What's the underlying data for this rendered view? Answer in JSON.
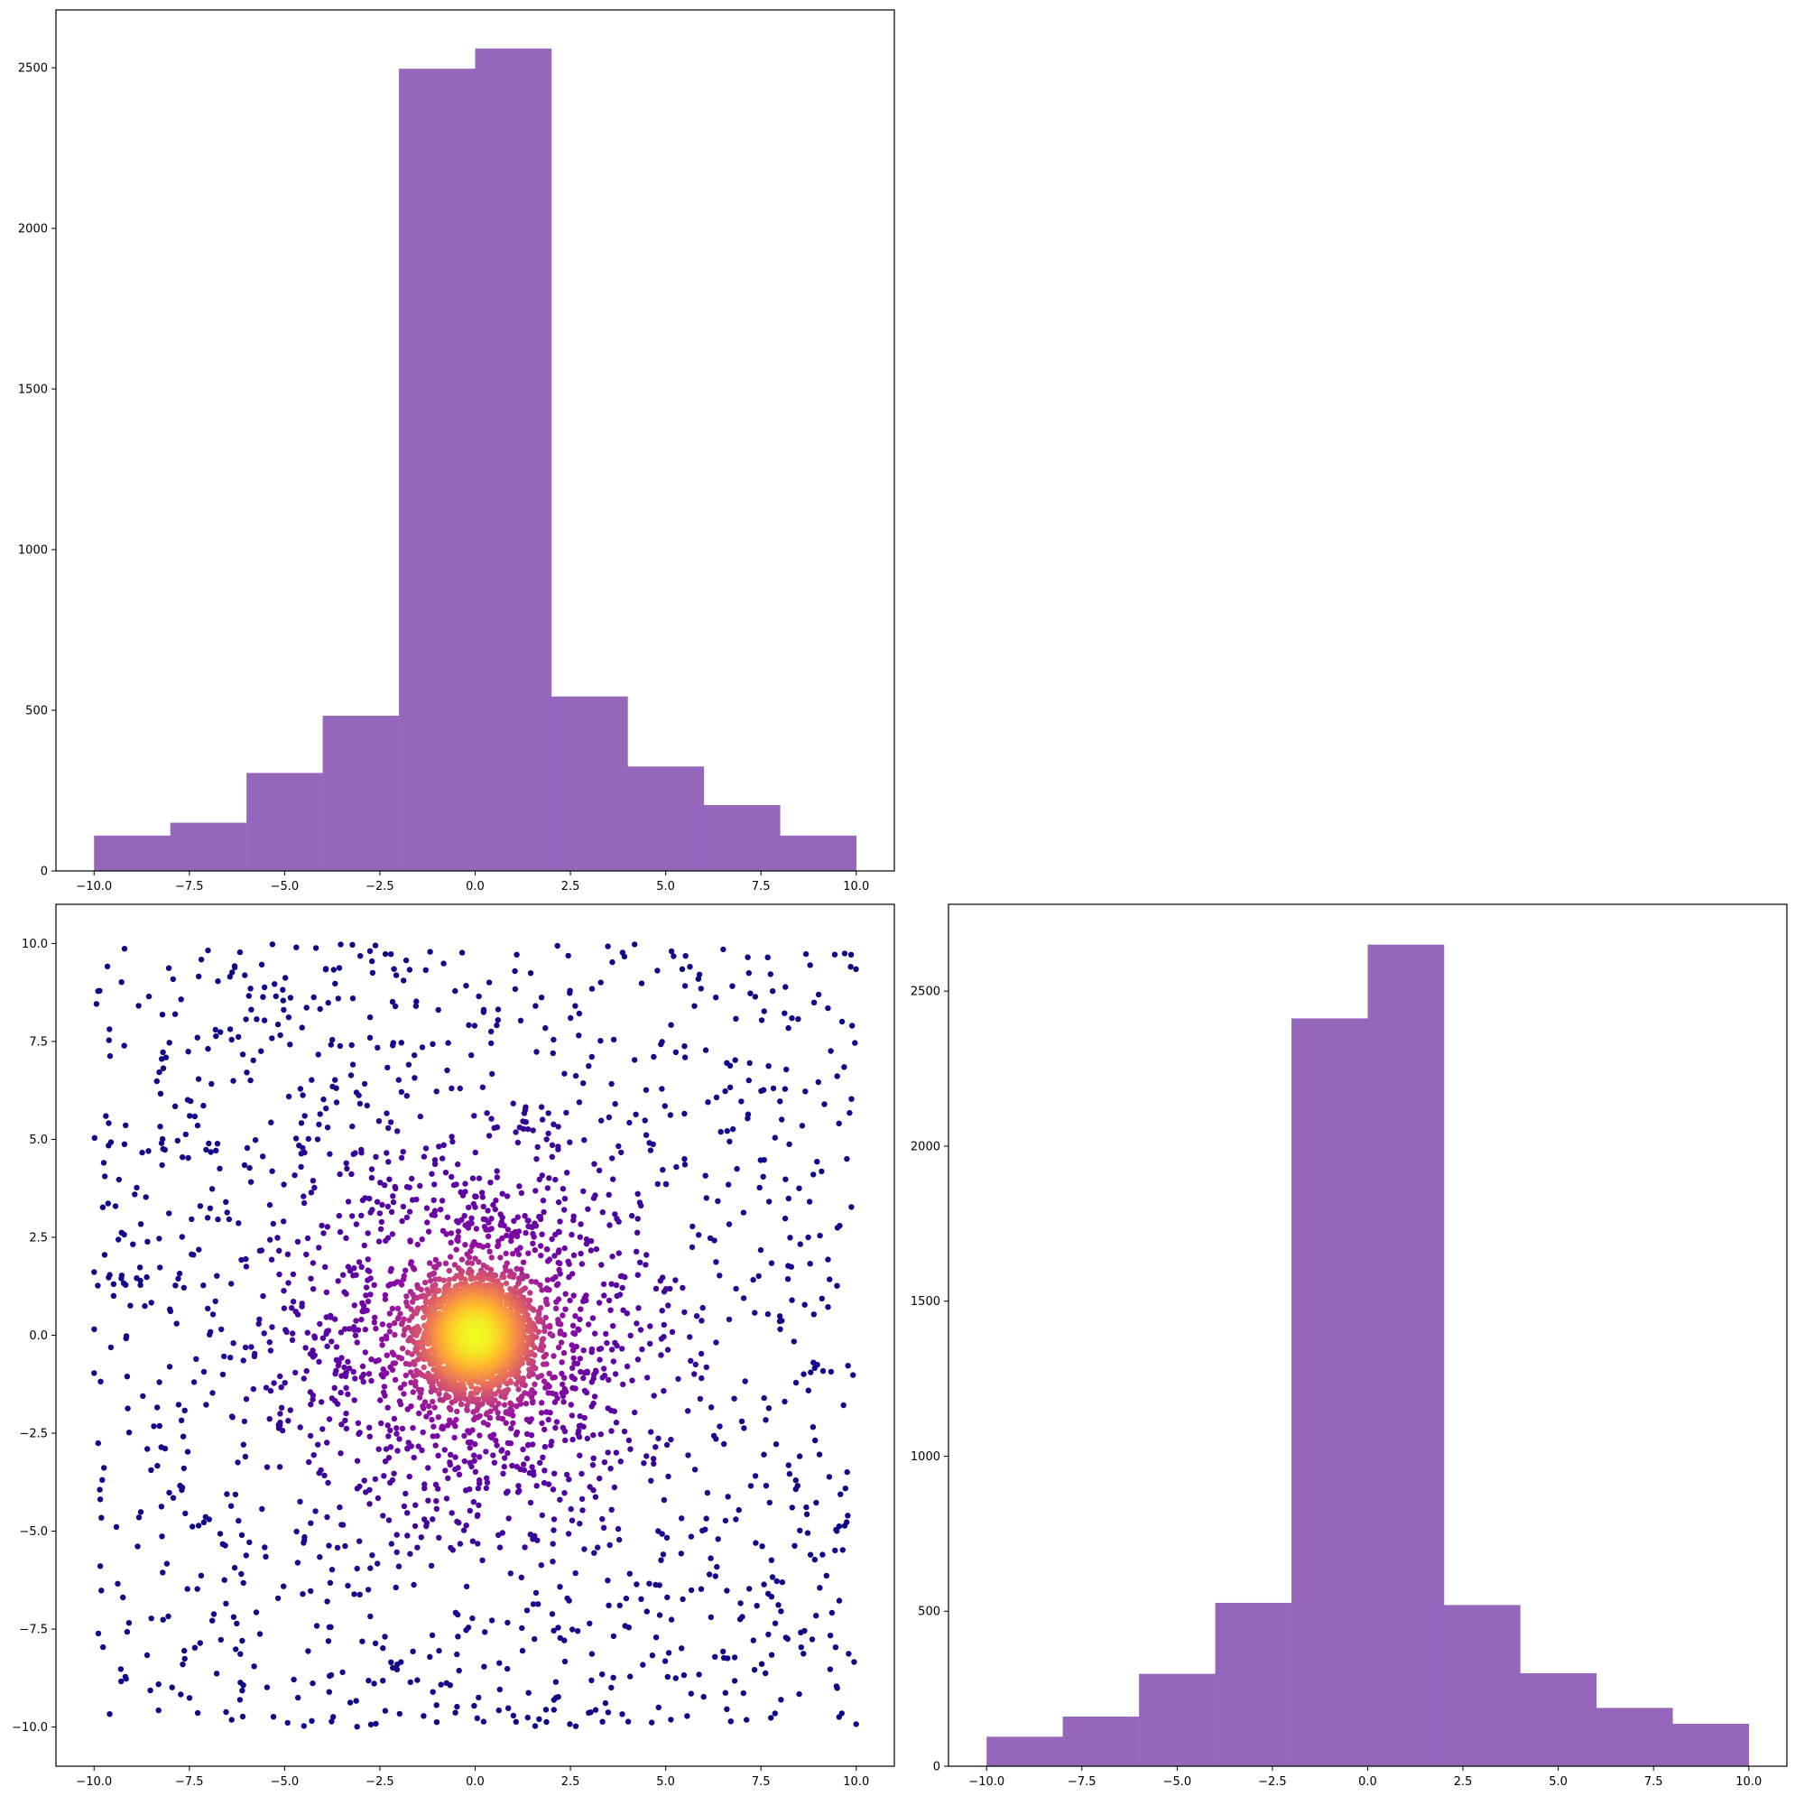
{
  "chart_data": [
    {
      "type": "bar",
      "panel": "top-left histogram",
      "bin_edges": [
        -10,
        -8,
        -6,
        -4,
        -2,
        0,
        2,
        4,
        6,
        8,
        10
      ],
      "values": [
        110,
        150,
        305,
        483,
        2497,
        2560,
        543,
        325,
        205,
        110
      ],
      "xlim": [
        -11,
        11
      ],
      "ylim": [
        0,
        2680
      ],
      "xticks": [
        -10,
        -7.5,
        -5,
        -2.5,
        0,
        2.5,
        5,
        7.5,
        10
      ],
      "xtick_labels": [
        "−10.0",
        "−7.5",
        "−5.0",
        "−2.5",
        "0.0",
        "2.5",
        "5.0",
        "7.5",
        "10.0"
      ],
      "yticks": [
        0,
        500,
        1000,
        1500,
        2000,
        2500
      ],
      "ytick_labels": [
        "0",
        "500",
        "1000",
        "1500",
        "2000",
        "2500"
      ],
      "color": "#9467bd",
      "grid": false,
      "title": "",
      "xlabel": "",
      "ylabel": ""
    },
    {
      "type": "scatter",
      "panel": "bottom-left scatter",
      "description_points": "uniform background scatter over [-10,10]x[-10,10] with a dense Gaussian cluster at the origin, colored by density (plasma colormap)",
      "n_background": 1400,
      "n_core": 3000,
      "core_sd": 0.6,
      "n_mid": 1100,
      "mid_sd": 2.2,
      "xlim": [
        -11,
        11
      ],
      "ylim": [
        -11,
        11
      ],
      "xticks": [
        -10,
        -7.5,
        -5,
        -2.5,
        0,
        2.5,
        5,
        7.5,
        10
      ],
      "xtick_labels": [
        "−10.0",
        "−7.5",
        "−5.0",
        "−2.5",
        "0.0",
        "2.5",
        "5.0",
        "7.5",
        "10.0"
      ],
      "yticks": [
        -10,
        -7.5,
        -5,
        -2.5,
        0,
        2.5,
        5,
        7.5,
        10
      ],
      "ytick_labels": [
        "−10.0",
        "−7.5",
        "−5.0",
        "−2.5",
        "0.0",
        "2.5",
        "5.0",
        "7.5",
        "10.0"
      ],
      "colormap": "plasma",
      "grid": false,
      "title": "",
      "xlabel": "",
      "ylabel": ""
    },
    {
      "type": "bar",
      "panel": "bottom-right histogram",
      "bin_edges": [
        -10,
        -8,
        -6,
        -4,
        -2,
        0,
        2,
        4,
        6,
        8,
        10
      ],
      "values": [
        95,
        160,
        298,
        527,
        2412,
        2650,
        520,
        300,
        188,
        137
      ],
      "xlim": [
        -11,
        11
      ],
      "ylim": [
        0,
        2780
      ],
      "xticks": [
        -10,
        -7.5,
        -5,
        -2.5,
        0,
        2.5,
        5,
        7.5,
        10
      ],
      "xtick_labels": [
        "−10.0",
        "−7.5",
        "−5.0",
        "−2.5",
        "0.0",
        "2.5",
        "5.0",
        "7.5",
        "10.0"
      ],
      "yticks": [
        0,
        500,
        1000,
        1500,
        2000,
        2500
      ],
      "ytick_labels": [
        "0",
        "500",
        "1000",
        "1500",
        "2000",
        "2500"
      ],
      "color": "#9467bd",
      "grid": false,
      "title": "",
      "xlabel": "",
      "ylabel": ""
    }
  ]
}
